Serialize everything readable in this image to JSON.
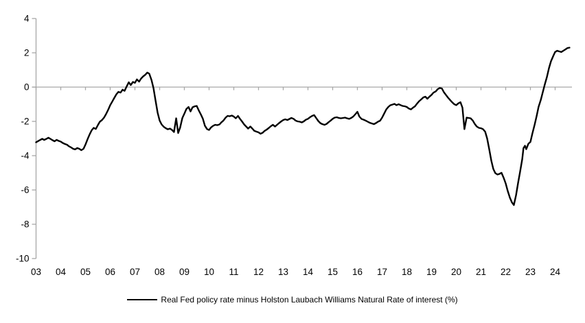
{
  "legend": {
    "label": "Real Fed policy rate minus Holston Laubach Williams Natural Rate of interest (%)"
  },
  "colors": {
    "line": "#000000",
    "axis_gray": "#a6a6a6",
    "tick_text": "#000000",
    "background": "#ffffff"
  },
  "chart_data": {
    "type": "line",
    "title": "",
    "xlabel": "",
    "ylabel": "",
    "grid": false,
    "legend_position": "bottom-center",
    "x_axis": {
      "range_years": [
        2003,
        2024.7
      ],
      "ticks": [
        2003,
        2004,
        2005,
        2006,
        2007,
        2008,
        2009,
        2010,
        2011,
        2012,
        2013,
        2014,
        2015,
        2016,
        2017,
        2018,
        2019,
        2020,
        2021,
        2022,
        2023,
        2024
      ],
      "tick_labels": [
        "03",
        "04",
        "05",
        "06",
        "07",
        "08",
        "09",
        "10",
        "11",
        "12",
        "13",
        "14",
        "15",
        "16",
        "17",
        "18",
        "19",
        "20",
        "21",
        "22",
        "23",
        "24"
      ],
      "axis_at_value": 0
    },
    "y_axis": {
      "range": [
        -10,
        4
      ],
      "ticks": [
        4,
        2,
        0,
        -2,
        -4,
        -6,
        -8,
        -10
      ],
      "tick_labels": [
        "4",
        "2",
        "0",
        "-2",
        "-4",
        "-6",
        "-8",
        "-10"
      ]
    },
    "series": [
      {
        "name": "Real Fed policy rate minus Holston Laubach Williams Natural Rate of interest (%)",
        "color": "#000000",
        "points": [
          [
            2003.0,
            -3.22
          ],
          [
            2003.08,
            -3.15
          ],
          [
            2003.17,
            -3.08
          ],
          [
            2003.25,
            -3.02
          ],
          [
            2003.33,
            -3.08
          ],
          [
            2003.42,
            -3.02
          ],
          [
            2003.5,
            -2.95
          ],
          [
            2003.58,
            -3.02
          ],
          [
            2003.67,
            -3.1
          ],
          [
            2003.75,
            -3.16
          ],
          [
            2003.83,
            -3.08
          ],
          [
            2003.92,
            -3.14
          ],
          [
            2004.0,
            -3.18
          ],
          [
            2004.08,
            -3.26
          ],
          [
            2004.17,
            -3.32
          ],
          [
            2004.25,
            -3.36
          ],
          [
            2004.33,
            -3.45
          ],
          [
            2004.42,
            -3.52
          ],
          [
            2004.5,
            -3.6
          ],
          [
            2004.58,
            -3.63
          ],
          [
            2004.67,
            -3.55
          ],
          [
            2004.75,
            -3.6
          ],
          [
            2004.83,
            -3.68
          ],
          [
            2004.92,
            -3.6
          ],
          [
            2005.0,
            -3.35
          ],
          [
            2005.08,
            -3.05
          ],
          [
            2005.17,
            -2.75
          ],
          [
            2005.25,
            -2.52
          ],
          [
            2005.33,
            -2.38
          ],
          [
            2005.42,
            -2.44
          ],
          [
            2005.5,
            -2.22
          ],
          [
            2005.58,
            -2.02
          ],
          [
            2005.67,
            -1.92
          ],
          [
            2005.75,
            -1.78
          ],
          [
            2005.83,
            -1.58
          ],
          [
            2005.92,
            -1.32
          ],
          [
            2006.0,
            -1.05
          ],
          [
            2006.08,
            -0.85
          ],
          [
            2006.17,
            -0.62
          ],
          [
            2006.25,
            -0.42
          ],
          [
            2006.33,
            -0.28
          ],
          [
            2006.42,
            -0.32
          ],
          [
            2006.5,
            -0.15
          ],
          [
            2006.58,
            -0.22
          ],
          [
            2006.67,
            0.05
          ],
          [
            2006.75,
            0.28
          ],
          [
            2006.83,
            0.12
          ],
          [
            2006.92,
            0.3
          ],
          [
            2007.0,
            0.25
          ],
          [
            2007.08,
            0.45
          ],
          [
            2007.17,
            0.32
          ],
          [
            2007.25,
            0.5
          ],
          [
            2007.33,
            0.62
          ],
          [
            2007.42,
            0.72
          ],
          [
            2007.5,
            0.85
          ],
          [
            2007.58,
            0.78
          ],
          [
            2007.67,
            0.42
          ],
          [
            2007.75,
            -0.05
          ],
          [
            2007.83,
            -0.75
          ],
          [
            2007.92,
            -1.5
          ],
          [
            2008.0,
            -1.95
          ],
          [
            2008.08,
            -2.18
          ],
          [
            2008.17,
            -2.32
          ],
          [
            2008.25,
            -2.4
          ],
          [
            2008.33,
            -2.46
          ],
          [
            2008.42,
            -2.42
          ],
          [
            2008.5,
            -2.5
          ],
          [
            2008.58,
            -2.62
          ],
          [
            2008.67,
            -1.82
          ],
          [
            2008.75,
            -2.68
          ],
          [
            2008.83,
            -2.35
          ],
          [
            2008.92,
            -1.8
          ],
          [
            2009.0,
            -1.55
          ],
          [
            2009.08,
            -1.28
          ],
          [
            2009.17,
            -1.16
          ],
          [
            2009.25,
            -1.42
          ],
          [
            2009.33,
            -1.18
          ],
          [
            2009.42,
            -1.12
          ],
          [
            2009.5,
            -1.1
          ],
          [
            2009.58,
            -1.35
          ],
          [
            2009.67,
            -1.6
          ],
          [
            2009.75,
            -1.85
          ],
          [
            2009.83,
            -2.25
          ],
          [
            2009.92,
            -2.45
          ],
          [
            2010.0,
            -2.5
          ],
          [
            2010.08,
            -2.35
          ],
          [
            2010.17,
            -2.25
          ],
          [
            2010.25,
            -2.2
          ],
          [
            2010.33,
            -2.22
          ],
          [
            2010.42,
            -2.18
          ],
          [
            2010.5,
            -2.05
          ],
          [
            2010.58,
            -1.95
          ],
          [
            2010.67,
            -1.78
          ],
          [
            2010.75,
            -1.68
          ],
          [
            2010.83,
            -1.7
          ],
          [
            2010.92,
            -1.66
          ],
          [
            2011.0,
            -1.72
          ],
          [
            2011.08,
            -1.82
          ],
          [
            2011.17,
            -1.68
          ],
          [
            2011.25,
            -1.85
          ],
          [
            2011.33,
            -2.0
          ],
          [
            2011.42,
            -2.18
          ],
          [
            2011.5,
            -2.3
          ],
          [
            2011.58,
            -2.42
          ],
          [
            2011.67,
            -2.3
          ],
          [
            2011.75,
            -2.42
          ],
          [
            2011.83,
            -2.55
          ],
          [
            2011.92,
            -2.6
          ],
          [
            2012.0,
            -2.64
          ],
          [
            2012.08,
            -2.72
          ],
          [
            2012.17,
            -2.66
          ],
          [
            2012.25,
            -2.55
          ],
          [
            2012.33,
            -2.48
          ],
          [
            2012.42,
            -2.38
          ],
          [
            2012.5,
            -2.28
          ],
          [
            2012.58,
            -2.2
          ],
          [
            2012.67,
            -2.3
          ],
          [
            2012.75,
            -2.2
          ],
          [
            2012.83,
            -2.1
          ],
          [
            2012.92,
            -2.0
          ],
          [
            2013.0,
            -1.92
          ],
          [
            2013.08,
            -1.88
          ],
          [
            2013.17,
            -1.92
          ],
          [
            2013.25,
            -1.86
          ],
          [
            2013.33,
            -1.8
          ],
          [
            2013.42,
            -1.85
          ],
          [
            2013.5,
            -1.95
          ],
          [
            2013.58,
            -2.0
          ],
          [
            2013.67,
            -2.02
          ],
          [
            2013.75,
            -2.06
          ],
          [
            2013.83,
            -2.0
          ],
          [
            2013.92,
            -1.9
          ],
          [
            2014.0,
            -1.85
          ],
          [
            2014.08,
            -1.76
          ],
          [
            2014.17,
            -1.68
          ],
          [
            2014.25,
            -1.63
          ],
          [
            2014.33,
            -1.8
          ],
          [
            2014.42,
            -1.98
          ],
          [
            2014.5,
            -2.1
          ],
          [
            2014.58,
            -2.16
          ],
          [
            2014.67,
            -2.2
          ],
          [
            2014.75,
            -2.15
          ],
          [
            2014.83,
            -2.05
          ],
          [
            2014.92,
            -1.95
          ],
          [
            2015.0,
            -1.85
          ],
          [
            2015.08,
            -1.78
          ],
          [
            2015.17,
            -1.76
          ],
          [
            2015.25,
            -1.8
          ],
          [
            2015.33,
            -1.82
          ],
          [
            2015.42,
            -1.8
          ],
          [
            2015.5,
            -1.78
          ],
          [
            2015.58,
            -1.82
          ],
          [
            2015.67,
            -1.85
          ],
          [
            2015.75,
            -1.8
          ],
          [
            2015.83,
            -1.72
          ],
          [
            2015.92,
            -1.58
          ],
          [
            2016.0,
            -1.44
          ],
          [
            2016.08,
            -1.72
          ],
          [
            2016.17,
            -1.86
          ],
          [
            2016.25,
            -1.9
          ],
          [
            2016.33,
            -1.95
          ],
          [
            2016.42,
            -2.02
          ],
          [
            2016.5,
            -2.08
          ],
          [
            2016.58,
            -2.12
          ],
          [
            2016.67,
            -2.16
          ],
          [
            2016.75,
            -2.1
          ],
          [
            2016.83,
            -2.02
          ],
          [
            2016.92,
            -1.96
          ],
          [
            2017.0,
            -1.78
          ],
          [
            2017.08,
            -1.55
          ],
          [
            2017.17,
            -1.3
          ],
          [
            2017.25,
            -1.16
          ],
          [
            2017.33,
            -1.06
          ],
          [
            2017.42,
            -1.02
          ],
          [
            2017.5,
            -0.98
          ],
          [
            2017.58,
            -1.05
          ],
          [
            2017.67,
            -1.0
          ],
          [
            2017.75,
            -1.05
          ],
          [
            2017.83,
            -1.1
          ],
          [
            2017.92,
            -1.12
          ],
          [
            2018.0,
            -1.16
          ],
          [
            2018.08,
            -1.25
          ],
          [
            2018.17,
            -1.3
          ],
          [
            2018.25,
            -1.2
          ],
          [
            2018.33,
            -1.12
          ],
          [
            2018.42,
            -0.95
          ],
          [
            2018.5,
            -0.82
          ],
          [
            2018.58,
            -0.72
          ],
          [
            2018.67,
            -0.6
          ],
          [
            2018.75,
            -0.56
          ],
          [
            2018.83,
            -0.68
          ],
          [
            2018.92,
            -0.55
          ],
          [
            2019.0,
            -0.45
          ],
          [
            2019.08,
            -0.32
          ],
          [
            2019.17,
            -0.25
          ],
          [
            2019.25,
            -0.12
          ],
          [
            2019.33,
            -0.05
          ],
          [
            2019.42,
            -0.08
          ],
          [
            2019.5,
            -0.3
          ],
          [
            2019.58,
            -0.45
          ],
          [
            2019.67,
            -0.62
          ],
          [
            2019.75,
            -0.75
          ],
          [
            2019.83,
            -0.88
          ],
          [
            2019.92,
            -1.0
          ],
          [
            2020.0,
            -1.05
          ],
          [
            2020.08,
            -0.95
          ],
          [
            2020.17,
            -0.88
          ],
          [
            2020.25,
            -1.2
          ],
          [
            2020.33,
            -2.45
          ],
          [
            2020.42,
            -1.78
          ],
          [
            2020.5,
            -1.8
          ],
          [
            2020.58,
            -1.82
          ],
          [
            2020.67,
            -1.95
          ],
          [
            2020.75,
            -2.15
          ],
          [
            2020.83,
            -2.3
          ],
          [
            2020.92,
            -2.38
          ],
          [
            2021.0,
            -2.4
          ],
          [
            2021.08,
            -2.45
          ],
          [
            2021.17,
            -2.6
          ],
          [
            2021.25,
            -3.0
          ],
          [
            2021.33,
            -3.6
          ],
          [
            2021.42,
            -4.3
          ],
          [
            2021.5,
            -4.78
          ],
          [
            2021.58,
            -5.02
          ],
          [
            2021.67,
            -5.1
          ],
          [
            2021.75,
            -5.06
          ],
          [
            2021.83,
            -5.0
          ],
          [
            2021.92,
            -5.3
          ],
          [
            2022.0,
            -5.62
          ],
          [
            2022.08,
            -6.05
          ],
          [
            2022.17,
            -6.45
          ],
          [
            2022.25,
            -6.72
          ],
          [
            2022.33,
            -6.88
          ],
          [
            2022.42,
            -6.3
          ],
          [
            2022.5,
            -5.6
          ],
          [
            2022.58,
            -4.95
          ],
          [
            2022.67,
            -4.2
          ],
          [
            2022.72,
            -3.56
          ],
          [
            2022.78,
            -3.42
          ],
          [
            2022.83,
            -3.62
          ],
          [
            2022.92,
            -3.3
          ],
          [
            2023.0,
            -3.2
          ],
          [
            2023.08,
            -2.7
          ],
          [
            2023.17,
            -2.2
          ],
          [
            2023.25,
            -1.7
          ],
          [
            2023.33,
            -1.15
          ],
          [
            2023.42,
            -0.75
          ],
          [
            2023.5,
            -0.3
          ],
          [
            2023.58,
            0.15
          ],
          [
            2023.67,
            0.6
          ],
          [
            2023.75,
            1.1
          ],
          [
            2023.83,
            1.5
          ],
          [
            2023.92,
            1.8
          ],
          [
            2024.0,
            2.05
          ],
          [
            2024.08,
            2.12
          ],
          [
            2024.17,
            2.08
          ],
          [
            2024.25,
            2.05
          ],
          [
            2024.33,
            2.12
          ],
          [
            2024.42,
            2.2
          ],
          [
            2024.5,
            2.28
          ],
          [
            2024.58,
            2.3
          ]
        ]
      }
    ]
  }
}
